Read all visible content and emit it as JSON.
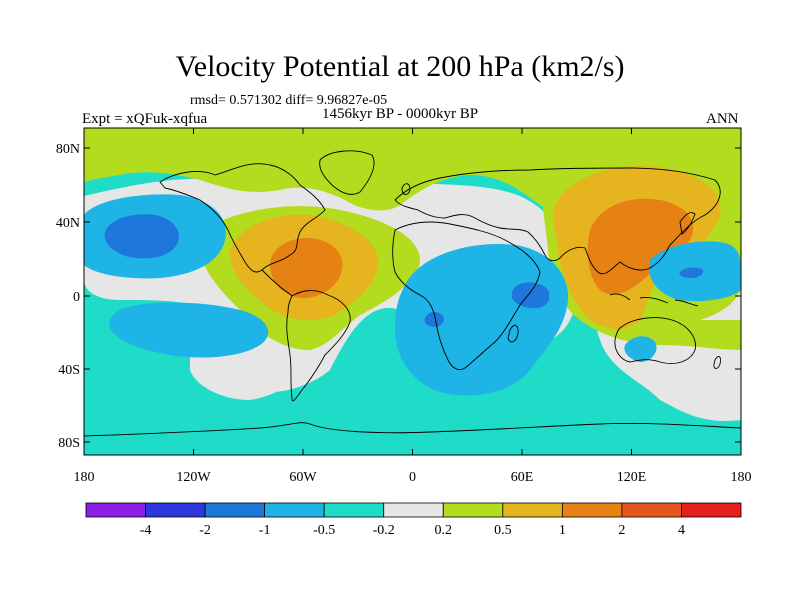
{
  "figure": {
    "title": "Velocity Potential at 200 hPa (km2/s)",
    "stats": "rmsd= 0.571302 diff= 9.96827e-05",
    "period": "1456kyr BP - 0000kyr BP",
    "experiment": "Expt = xQFuk-xqfua",
    "season": "ANN"
  },
  "axes": {
    "lat_ticks": [
      "80N",
      "40N",
      "0",
      "40S",
      "80S"
    ],
    "lon_ticks": [
      "180",
      "120W",
      "60W",
      "0",
      "60E",
      "120E",
      "180"
    ]
  },
  "colorbar": {
    "colors": [
      "#8c1ee6",
      "#2d37de",
      "#1e78dc",
      "#1eb4e6",
      "#1edcc8",
      "#e6e6e6",
      "#b4dc1e",
      "#e6b41e",
      "#e68214",
      "#e6551e",
      "#e61e1e"
    ],
    "labels": [
      "-4",
      "-2",
      "-1",
      "-0.5",
      "-0.2",
      "0.2",
      "0.5",
      "1",
      "2",
      "4"
    ]
  },
  "fill_colors": {
    "ocean_base": "#1edcc8",
    "neutral": "#e6e6e6",
    "positive_weak": "#b4dc1e",
    "positive_mid": "#e6b41e",
    "positive_strong": "#e68214",
    "negative_weak": "#1eb4e6",
    "negative_mid": "#1e78dc"
  }
}
